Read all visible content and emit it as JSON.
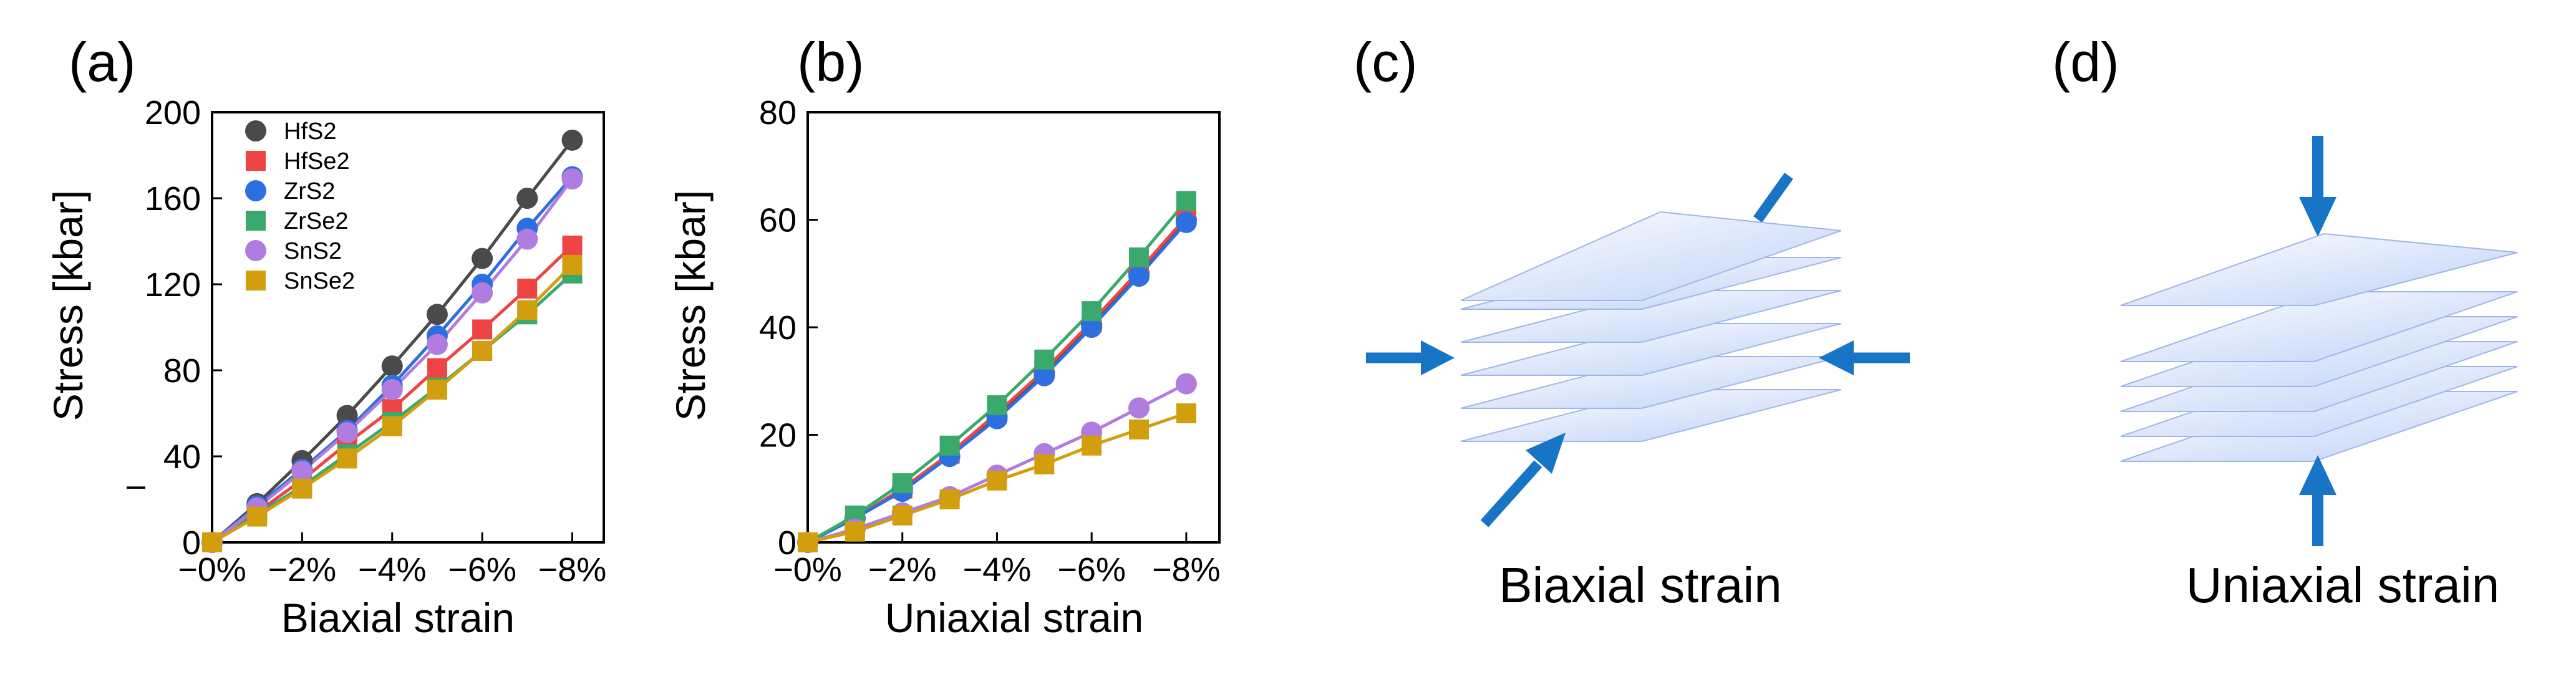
{
  "series_colors": {
    "HfS2": "#4a4a4a",
    "HfSe2": "#ef4444",
    "ZrS2": "#2d6fe0",
    "ZrSe2": "#3aa96b",
    "SnS2": "#b07ce0",
    "SnSe2": "#d39e0e"
  },
  "arrow_color": "#1874c4",
  "chart_data": [
    {
      "type": "line",
      "panel": "(a)",
      "xlabel": "Biaxial strain",
      "ylabel": "Stress [kbar]",
      "xlim": [
        0,
        -8.7
      ],
      "ylim": [
        0,
        200
      ],
      "xticks": [
        0,
        -2,
        -4,
        -6,
        -8
      ],
      "xtick_labels": [
        "−0%",
        "−2%",
        "−4%",
        "−6%",
        "−8%"
      ],
      "yticks": [
        0,
        40,
        80,
        120,
        160,
        200
      ],
      "ytick_labels": [
        "0",
        "40",
        "80",
        "120",
        "160",
        "200"
      ],
      "stray_mark": "–",
      "legend_position": "top-left",
      "x": [
        0,
        -1,
        -2,
        -3,
        -4,
        -5,
        -6,
        -7,
        -8
      ],
      "series": [
        {
          "name": "HfS2",
          "marker": "circle",
          "values": [
            0,
            18,
            38,
            59,
            82,
            106,
            132,
            160,
            187
          ]
        },
        {
          "name": "HfSe2",
          "marker": "square",
          "values": [
            0,
            14,
            29,
            46,
            62,
            81,
            99,
            118,
            138
          ]
        },
        {
          "name": "ZrS2",
          "marker": "circle",
          "values": [
            0,
            17,
            34,
            52,
            73,
            96,
            120,
            146,
            170
          ]
        },
        {
          "name": "ZrSe2",
          "marker": "square",
          "values": [
            0,
            13,
            26,
            41,
            56,
            72,
            89,
            106,
            125
          ]
        },
        {
          "name": "SnS2",
          "marker": "circle",
          "values": [
            0,
            16,
            33,
            51,
            71,
            92,
            116,
            141,
            169
          ]
        },
        {
          "name": "SnSe2",
          "marker": "square",
          "values": [
            0,
            12,
            25,
            39,
            54,
            71,
            89,
            108,
            129
          ]
        }
      ]
    },
    {
      "type": "line",
      "panel": "(b)",
      "xlabel": "Uniaxial strain",
      "ylabel": "Stress [kbar]",
      "xlim": [
        0,
        -8.7
      ],
      "ylim": [
        0,
        80
      ],
      "xticks": [
        0,
        -2,
        -4,
        -6,
        -8
      ],
      "xtick_labels": [
        "−0%",
        "−2%",
        "−4%",
        "−6%",
        "−8%"
      ],
      "yticks": [
        0,
        20,
        40,
        60,
        80
      ],
      "ytick_labels": [
        "0",
        "20",
        "40",
        "60",
        "80"
      ],
      "x": [
        0,
        -1,
        -2,
        -3,
        -4,
        -5,
        -6,
        -7,
        -8
      ],
      "series": [
        {
          "name": "HfS2",
          "marker": "circle",
          "values": [
            0,
            4.5,
            10,
            16,
            23.5,
            31.5,
            40.5,
            50,
            60
          ]
        },
        {
          "name": "HfSe2",
          "marker": "square",
          "values": [
            0,
            4.5,
            10,
            16.5,
            24,
            32,
            41,
            50.5,
            60.5
          ]
        },
        {
          "name": "ZrS2",
          "marker": "circle",
          "values": [
            0,
            4.5,
            9.5,
            16,
            23,
            31,
            40,
            49.5,
            59.5
          ]
        },
        {
          "name": "ZrSe2",
          "marker": "square",
          "values": [
            0,
            5,
            11,
            18,
            25.5,
            34,
            43,
            53,
            63.5
          ]
        },
        {
          "name": "SnS2",
          "marker": "circle",
          "values": [
            0,
            2.5,
            5.5,
            8.5,
            12.5,
            16.5,
            20.5,
            25,
            29.5
          ]
        },
        {
          "name": "SnSe2",
          "marker": "square",
          "values": [
            0,
            2,
            5,
            8,
            11.5,
            14.5,
            18,
            21,
            24
          ]
        }
      ]
    }
  ],
  "panel_c": {
    "label": "(c)",
    "caption": "Biaxial strain"
  },
  "panel_d": {
    "label": "(d)",
    "caption": "Uniaxial strain"
  }
}
